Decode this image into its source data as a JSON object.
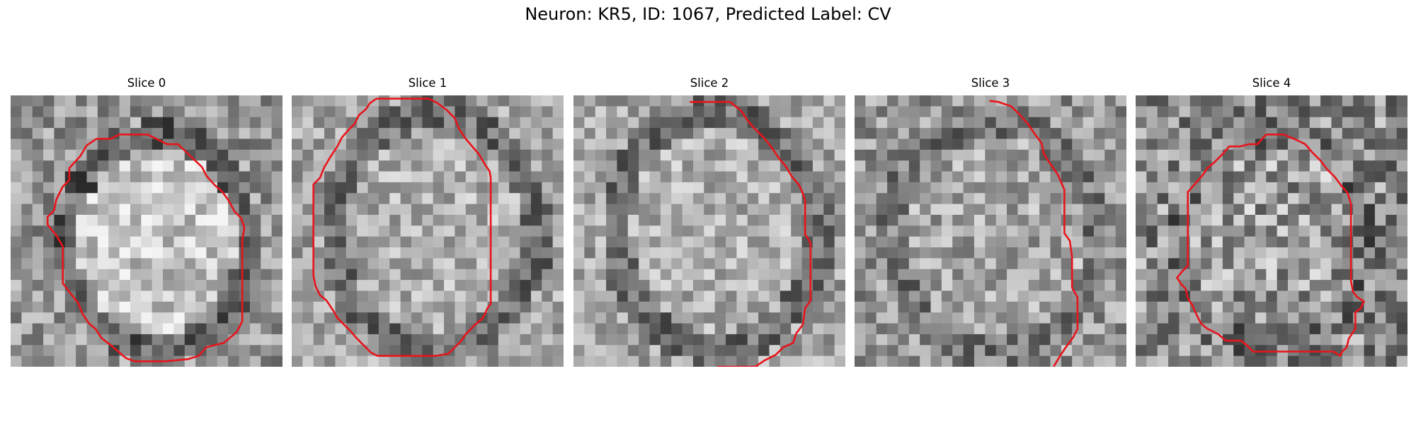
{
  "figure": {
    "title": "Neuron: KR5, ID: 1067, Predicted Label: CV"
  },
  "panels": [
    {
      "title": "Slice 0",
      "seed": 11,
      "texture": "soma-bright",
      "contour": [
        [
          10,
          3.6
        ],
        [
          12.6,
          3.6
        ],
        [
          14.4,
          4.5
        ],
        [
          15.4,
          4.5
        ],
        [
          17.6,
          6.6
        ],
        [
          18,
          7.4
        ],
        [
          18.8,
          8.3
        ],
        [
          19.4,
          8.8
        ],
        [
          20,
          9.6
        ],
        [
          20.6,
          10.7
        ],
        [
          21.2,
          11.3
        ],
        [
          21.5,
          12.2
        ],
        [
          21.3,
          13.3
        ],
        [
          21.3,
          15.5
        ],
        [
          21.3,
          17.2
        ],
        [
          21.3,
          19.2
        ],
        [
          21.3,
          20.8
        ],
        [
          20.8,
          21.8
        ],
        [
          20.2,
          22.3
        ],
        [
          19.6,
          22.8
        ],
        [
          18.8,
          23
        ],
        [
          18,
          23.2
        ],
        [
          17.3,
          24
        ],
        [
          16.3,
          24.3
        ],
        [
          15.2,
          24.4
        ],
        [
          14.2,
          24.5
        ],
        [
          12.8,
          24.5
        ],
        [
          11.4,
          24.5
        ],
        [
          10.6,
          24.2
        ],
        [
          9.9,
          23.6
        ],
        [
          9.2,
          23
        ],
        [
          8.4,
          22.4
        ],
        [
          7.8,
          21.5
        ],
        [
          7.2,
          21
        ],
        [
          6.6,
          20.1
        ],
        [
          6.2,
          19.1
        ],
        [
          5.4,
          18.1
        ],
        [
          4.8,
          17.3
        ],
        [
          4.8,
          15.7
        ],
        [
          4.8,
          13.9
        ],
        [
          4.2,
          12.9
        ],
        [
          3.4,
          11.9
        ],
        [
          3.4,
          11.2
        ],
        [
          4,
          10.6
        ],
        [
          4.2,
          9.6
        ],
        [
          4.8,
          8.4
        ],
        [
          5.4,
          7.8
        ],
        [
          5.4,
          6.7
        ],
        [
          6.4,
          5.6
        ],
        [
          7,
          4.6
        ],
        [
          7.9,
          4
        ],
        [
          9.2,
          4
        ],
        [
          10,
          3.6
        ]
      ]
    },
    {
      "title": "Slice 1",
      "seed": 23,
      "texture": "soma-mid",
      "contour": [
        [
          7.8,
          0.3
        ],
        [
          9.8,
          0.3
        ],
        [
          12.6,
          0.3
        ],
        [
          13.4,
          0.7
        ],
        [
          14.2,
          1.3
        ],
        [
          15,
          2.1
        ],
        [
          15.4,
          3.1
        ],
        [
          16,
          4
        ],
        [
          16.6,
          4.7
        ],
        [
          17.2,
          5.4
        ],
        [
          17.8,
          6.4
        ],
        [
          18.2,
          7
        ],
        [
          18.3,
          7.6
        ],
        [
          18.3,
          10
        ],
        [
          18.3,
          13.4
        ],
        [
          18.3,
          15.5
        ],
        [
          18.3,
          17.3
        ],
        [
          18.3,
          19.2
        ],
        [
          18,
          19.6
        ],
        [
          17.6,
          20.5
        ],
        [
          17,
          21
        ],
        [
          16.6,
          21.4
        ],
        [
          16,
          22
        ],
        [
          15.6,
          22.6
        ],
        [
          15,
          23.2
        ],
        [
          14.4,
          23.8
        ],
        [
          13.2,
          24
        ],
        [
          11.3,
          24
        ],
        [
          9.4,
          24
        ],
        [
          7.9,
          24
        ],
        [
          7.3,
          23.7
        ],
        [
          6.6,
          23
        ],
        [
          6,
          22.4
        ],
        [
          5.4,
          21.7
        ],
        [
          4.8,
          21.1
        ],
        [
          4.2,
          20.5
        ],
        [
          3.8,
          19.8
        ],
        [
          3.2,
          18.9
        ],
        [
          2.6,
          18.4
        ],
        [
          2.2,
          17.6
        ],
        [
          2,
          16.6
        ],
        [
          2,
          14.3
        ],
        [
          2,
          11.6
        ],
        [
          2,
          9.3
        ],
        [
          2,
          8.2
        ],
        [
          2.6,
          7.6
        ],
        [
          3,
          6.6
        ],
        [
          3.6,
          5.6
        ],
        [
          4.2,
          4.7
        ],
        [
          4.6,
          3.9
        ],
        [
          5.2,
          3.2
        ],
        [
          5.8,
          2.6
        ],
        [
          6.2,
          1.8
        ],
        [
          6.8,
          1.3
        ],
        [
          7.2,
          0.7
        ],
        [
          7.8,
          0.3
        ]
      ]
    },
    {
      "title": "Slice 2",
      "seed": 37,
      "texture": "soma-mid",
      "contour": [
        [
          10.7,
          0.6
        ],
        [
          13,
          0.6
        ],
        [
          14.4,
          0.6
        ],
        [
          15.4,
          1.4
        ],
        [
          16,
          2.3
        ],
        [
          16.6,
          3
        ],
        [
          17.6,
          4
        ],
        [
          18.3,
          4.9
        ],
        [
          18.9,
          5.8
        ],
        [
          19.5,
          6.5
        ],
        [
          20.1,
          7.5
        ],
        [
          20.7,
          8.2
        ],
        [
          21,
          8.8
        ],
        [
          21.3,
          9.7
        ],
        [
          21.3,
          11.3
        ],
        [
          21.3,
          12.8
        ],
        [
          21.8,
          13.6
        ],
        [
          21.8,
          15.4
        ],
        [
          21.8,
          17.2
        ],
        [
          21.8,
          18.9
        ],
        [
          21.3,
          19.6
        ],
        [
          21.1,
          21.1
        ],
        [
          20.5,
          21.9
        ],
        [
          20.2,
          22.8
        ],
        [
          19.3,
          23.2
        ],
        [
          18.6,
          23.9
        ],
        [
          17.6,
          24.4
        ],
        [
          16.7,
          25
        ],
        [
          14.1,
          25
        ],
        [
          13.2,
          25
        ]
      ]
    },
    {
      "title": "Slice 3",
      "seed": 41,
      "texture": "soma-dim",
      "contour": [
        [
          12.4,
          0.5
        ],
        [
          13.2,
          0.6
        ],
        [
          14.4,
          1
        ],
        [
          15.2,
          1.8
        ],
        [
          16,
          2.7
        ],
        [
          16.6,
          3.6
        ],
        [
          17.2,
          4.4
        ],
        [
          17.4,
          5.4
        ],
        [
          18,
          6.3
        ],
        [
          18.7,
          7.3
        ],
        [
          19.3,
          8.7
        ],
        [
          19.3,
          9.7
        ],
        [
          19.3,
          11.4
        ],
        [
          19.3,
          12.7
        ],
        [
          19.8,
          13.4
        ],
        [
          20,
          14.9
        ],
        [
          20,
          16.2
        ],
        [
          20,
          17.7
        ],
        [
          20.5,
          18.6
        ],
        [
          20.5,
          20.2
        ],
        [
          20.5,
          21.5
        ],
        [
          20.1,
          22.3
        ],
        [
          19.5,
          23.1
        ],
        [
          18.9,
          24
        ],
        [
          18.3,
          25
        ]
      ]
    },
    {
      "title": "Slice 4",
      "seed": 53,
      "texture": "soma-noisy",
      "contour": [
        [
          12,
          3.6
        ],
        [
          13.6,
          3.6
        ],
        [
          14.8,
          4.1
        ],
        [
          15.6,
          4.5
        ],
        [
          16.2,
          5.2
        ],
        [
          17,
          6
        ],
        [
          17.6,
          6.8
        ],
        [
          18.3,
          7.5
        ],
        [
          18.9,
          8.3
        ],
        [
          19.5,
          9
        ],
        [
          19.8,
          10
        ],
        [
          19.8,
          12.3
        ],
        [
          19.8,
          14.3
        ],
        [
          19.8,
          16.4
        ],
        [
          19.8,
          17.1
        ],
        [
          20,
          18.1
        ],
        [
          20.4,
          18.6
        ],
        [
          21,
          19
        ],
        [
          20.7,
          19.6
        ],
        [
          20.2,
          20
        ],
        [
          20.2,
          21.5
        ],
        [
          19.6,
          22.4
        ],
        [
          19.4,
          23.2
        ],
        [
          19,
          23.6
        ],
        [
          18.8,
          24
        ],
        [
          18.2,
          23.6
        ],
        [
          16.2,
          23.6
        ],
        [
          14,
          23.6
        ],
        [
          11.8,
          23.6
        ],
        [
          10.8,
          23.6
        ],
        [
          10.2,
          23
        ],
        [
          9.7,
          22.6
        ],
        [
          8.3,
          22.6
        ],
        [
          7.6,
          22
        ],
        [
          6.6,
          21.5
        ],
        [
          6,
          21
        ],
        [
          5.6,
          20.2
        ],
        [
          5.2,
          19.3
        ],
        [
          4.8,
          18.7
        ],
        [
          4.6,
          17.8
        ],
        [
          4.2,
          17.4
        ],
        [
          3.8,
          16.8
        ],
        [
          4.3,
          16.2
        ],
        [
          4.8,
          15.7
        ],
        [
          4.8,
          14.3
        ],
        [
          4.8,
          12.2
        ],
        [
          4.8,
          10
        ],
        [
          4.8,
          8.9
        ],
        [
          5.6,
          8
        ],
        [
          6.2,
          7.3
        ],
        [
          6.6,
          6.7
        ],
        [
          7.2,
          6.2
        ],
        [
          8,
          5.4
        ],
        [
          8.6,
          4.7
        ],
        [
          9.6,
          4.7
        ],
        [
          10.4,
          4.5
        ],
        [
          11.2,
          4.5
        ],
        [
          12,
          3.6
        ]
      ]
    }
  ],
  "colors": {
    "contour": "#e8141b"
  }
}
